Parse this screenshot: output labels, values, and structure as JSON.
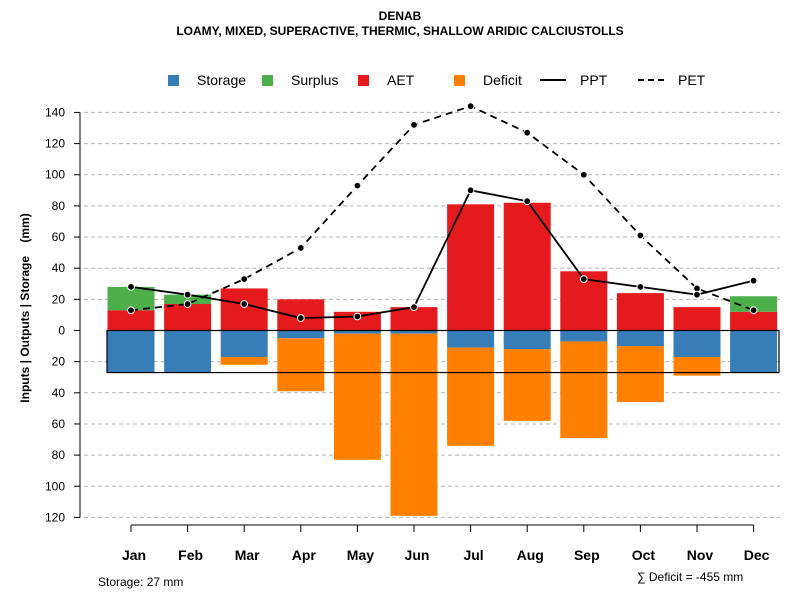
{
  "chart_data": {
    "type": "bar",
    "title": "DENAB",
    "subtitle": "LOAMY, MIXED, SUPERACTIVE, THERMIC, SHALLOW ARIDIC CALCIUSTOLLS",
    "ylabel": "Inputs | Outputs | Storage    (mm)",
    "ylim": [
      -120,
      140
    ],
    "yticks": [
      140,
      120,
      100,
      80,
      60,
      40,
      20,
      0,
      -20,
      -40,
      -60,
      -80,
      -100,
      -120
    ],
    "ytick_labels": [
      "140",
      "120",
      "100",
      "80",
      "60",
      "40",
      "20",
      "0",
      "20",
      "40",
      "60",
      "80",
      "100",
      "120"
    ],
    "grid": "horizontal dashed",
    "categories": [
      "Jan",
      "Feb",
      "Mar",
      "Apr",
      "May",
      "Jun",
      "Jul",
      "Aug",
      "Sep",
      "Oct",
      "Nov",
      "Dec"
    ],
    "legend": [
      {
        "name": "Storage",
        "color": "#377eb8",
        "kind": "box"
      },
      {
        "name": "Surplus",
        "color": "#4daf4a",
        "kind": "box"
      },
      {
        "name": "AET",
        "color": "#e41a1c",
        "kind": "box"
      },
      {
        "name": "Deficit",
        "color": "#ff7f00",
        "kind": "box"
      },
      {
        "name": "PPT",
        "color": "#000000",
        "kind": "solid"
      },
      {
        "name": "PET",
        "color": "#000000",
        "kind": "dashed"
      }
    ],
    "series": [
      {
        "name": "AET",
        "values": [
          13,
          17,
          27,
          20,
          12,
          15,
          81,
          82,
          38,
          24,
          15,
          12
        ]
      },
      {
        "name": "Surplus",
        "values": [
          15,
          6,
          0,
          0,
          0,
          0,
          0,
          0,
          0,
          0,
          0,
          10
        ]
      },
      {
        "name": "Storage",
        "values": [
          27,
          27,
          17,
          5,
          2,
          2,
          11,
          12,
          7,
          10,
          17,
          27
        ]
      },
      {
        "name": "Deficit",
        "values": [
          0,
          0,
          5,
          34,
          81,
          117,
          63,
          46,
          62,
          36,
          12,
          0
        ]
      },
      {
        "name": "PPT",
        "values": [
          28,
          23,
          17,
          8,
          9,
          15,
          90,
          83,
          33,
          28,
          23,
          32
        ]
      },
      {
        "name": "PET",
        "values": [
          13,
          17,
          33,
          53,
          93,
          132,
          144,
          127,
          100,
          61,
          27,
          13
        ]
      }
    ],
    "storage_capacity": 27
  },
  "notes": {
    "storage": "Storage: 27 mm",
    "deficit": "∑ Deficit = -455 mm"
  }
}
